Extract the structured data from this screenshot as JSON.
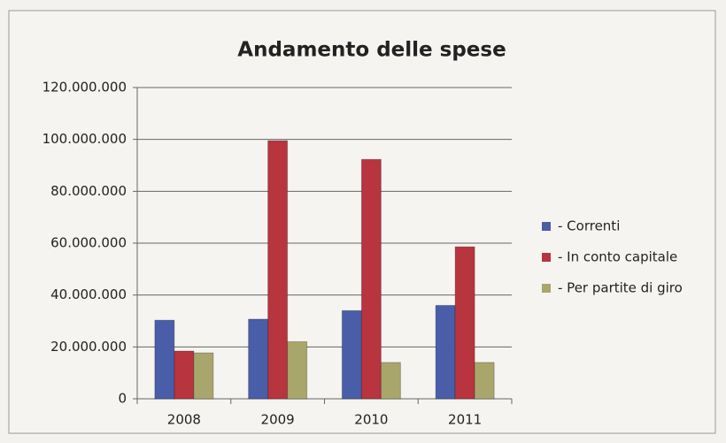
{
  "chart_data": {
    "type": "bar",
    "title": "Andamento delle spese",
    "categories": [
      "2008",
      "2009",
      "2010",
      "2011"
    ],
    "series": [
      {
        "name": "- Correnti",
        "color": "#4a5da8",
        "values": [
          30300000,
          30700000,
          34000000,
          36000000
        ]
      },
      {
        "name": "- In conto capitale",
        "color": "#b8343e",
        "values": [
          18400000,
          99500000,
          92300000,
          58600000
        ]
      },
      {
        "name": "- Per partite di giro",
        "color": "#a9a66c",
        "values": [
          17700000,
          22000000,
          14000000,
          14000000
        ]
      }
    ],
    "ylim": [
      0,
      120000000
    ],
    "yticks": [
      0,
      {
        "value": 20000000,
        "label": "20.000.000"
      },
      {
        "value": 40000000,
        "label": "40.000.000"
      },
      {
        "value": 60000000,
        "label": "60.000.000"
      },
      {
        "value": 80000000,
        "label": "80.000.000"
      },
      {
        "value": 100000000,
        "label": "100.000.000"
      },
      {
        "value": 120000000,
        "label": "120.000.000"
      }
    ],
    "grid": true,
    "legend": "right"
  }
}
